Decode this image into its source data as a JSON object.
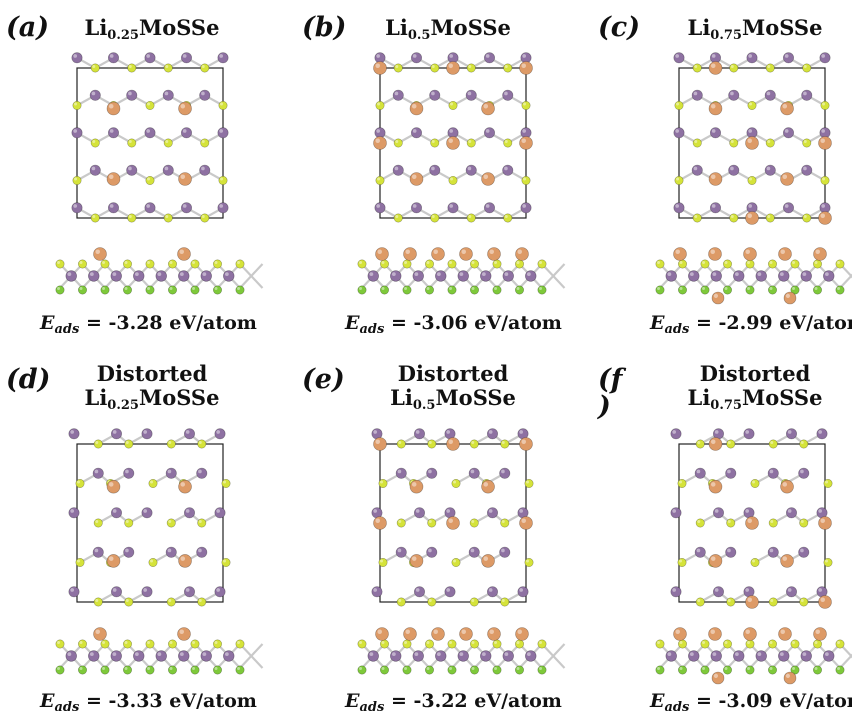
{
  "figure": {
    "colors": {
      "mo": "#8e71a2",
      "s": "#d5e33a",
      "se": "#7ec93a",
      "li": "#dd9a66",
      "bond": "#c9c9c9",
      "cell": "#222222"
    },
    "panels": [
      {
        "tag": "(a)",
        "distorted": "",
        "formula_pre": "Li",
        "formula_sub": "0.25",
        "formula_post": "MoSSe",
        "energy_symbol": "E",
        "energy_sub": "ads",
        "energy_text": "= -3.28 eV/atom",
        "li_fraction": 0.25
      },
      {
        "tag": "(b)",
        "distorted": "",
        "formula_pre": "Li",
        "formula_sub": "0.5",
        "formula_post": "MoSSe",
        "energy_symbol": "E",
        "energy_sub": "ads",
        "energy_text": "= -3.06 eV/atom",
        "li_fraction": 0.5
      },
      {
        "tag": "(c)",
        "distorted": "",
        "formula_pre": "Li",
        "formula_sub": "0.75",
        "formula_post": "MoSSe",
        "energy_symbol": "E",
        "energy_sub": "ads",
        "energy_text": "= -2.99 eV/atom",
        "li_fraction": 0.75
      },
      {
        "tag": "(d)",
        "distorted": "Distorted",
        "formula_pre": "Li",
        "formula_sub": "0.25",
        "formula_post": "MoSSe",
        "energy_symbol": "E",
        "energy_sub": "ads",
        "energy_text": "= -3.33 eV/atom",
        "li_fraction": 0.25
      },
      {
        "tag": "(e)",
        "distorted": "Distorted",
        "formula_pre": "Li",
        "formula_sub": "0.5",
        "formula_post": "MoSSe",
        "energy_symbol": "E",
        "energy_sub": "ads",
        "energy_text": "= -3.22 eV/atom",
        "li_fraction": 0.5
      },
      {
        "tag": "(f )",
        "distorted": "Distorted",
        "formula_pre": "Li",
        "formula_sub": "0.75",
        "formula_post": "MoSSe",
        "energy_symbol": "E",
        "energy_sub": "ads",
        "energy_text": "= -3.09 eV/atom",
        "li_fraction": 0.75
      }
    ]
  }
}
